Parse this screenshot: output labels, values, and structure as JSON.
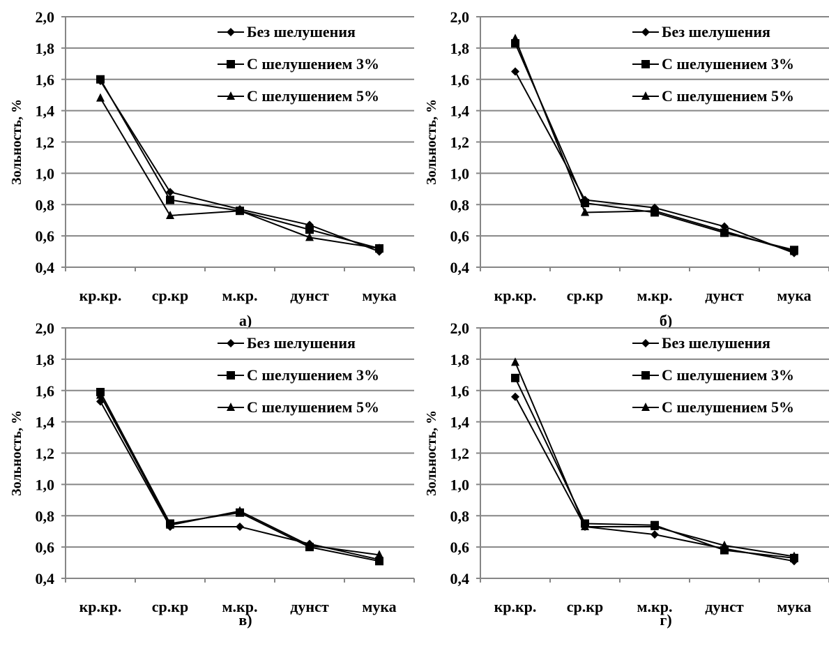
{
  "figure": {
    "charts": [
      {
        "panel_label": "а)"
      },
      {
        "panel_label": "б)"
      },
      {
        "panel_label": "в)"
      },
      {
        "panel_label": "г)"
      }
    ]
  },
  "chart_data": [
    {
      "type": "line",
      "panel": "а)",
      "categories": [
        "кр.кр.",
        "ср.кр",
        "м.кр.",
        "дунст",
        "мука"
      ],
      "ylabel": "Зольность, %",
      "ylim": [
        0.4,
        2.0
      ],
      "yticks": [
        "0,4",
        "0,6",
        "0,8",
        "1,0",
        "1,2",
        "1,4",
        "1,6",
        "1,8",
        "2,0"
      ],
      "grid": true,
      "legend_position": "top-right",
      "series": [
        {
          "name": "Без шелушения",
          "marker": "diamond",
          "values": [
            1.59,
            0.88,
            0.77,
            0.67,
            0.5
          ]
        },
        {
          "name": "С шелушением 3%",
          "marker": "square",
          "values": [
            1.6,
            0.83,
            0.76,
            0.64,
            0.52
          ]
        },
        {
          "name": "С шелушением 5%",
          "marker": "triangle",
          "values": [
            1.48,
            0.73,
            0.76,
            0.59,
            0.52
          ]
        }
      ]
    },
    {
      "type": "line",
      "panel": "б)",
      "categories": [
        "кр.кр.",
        "ср.кр",
        "м.кр.",
        "дунст",
        "мука"
      ],
      "ylabel": "Зольность, %",
      "ylim": [
        0.4,
        2.0
      ],
      "yticks": [
        "0,4",
        "0,6",
        "0,8",
        "1,0",
        "1,2",
        "1,4",
        "1,6",
        "1,8",
        "2,0"
      ],
      "grid": true,
      "legend_position": "top-right",
      "series": [
        {
          "name": "Без шелушения",
          "marker": "diamond",
          "values": [
            1.65,
            0.83,
            0.78,
            0.66,
            0.49
          ]
        },
        {
          "name": "С шелушением 3%",
          "marker": "square",
          "values": [
            1.83,
            0.81,
            0.75,
            0.62,
            0.51
          ]
        },
        {
          "name": "С шелушением 5%",
          "marker": "triangle",
          "values": [
            1.86,
            0.75,
            0.76,
            0.63,
            0.5
          ]
        }
      ]
    },
    {
      "type": "line",
      "panel": "в)",
      "categories": [
        "кр.кр.",
        "ср.кр",
        "м.кр.",
        "дунст",
        "мука"
      ],
      "ylabel": "Зольность, %",
      "ylim": [
        0.4,
        2.0
      ],
      "yticks": [
        "0,4",
        "0,6",
        "0,8",
        "1,0",
        "1,2",
        "1,4",
        "1,6",
        "1,8",
        "2,0"
      ],
      "grid": true,
      "legend_position": "top-right",
      "series": [
        {
          "name": "Без шелушения",
          "marker": "diamond",
          "values": [
            1.53,
            0.73,
            0.73,
            0.62,
            0.52
          ]
        },
        {
          "name": "С шелушением 3%",
          "marker": "square",
          "values": [
            1.59,
            0.75,
            0.82,
            0.6,
            0.51
          ]
        },
        {
          "name": "С шелушением 5%",
          "marker": "triangle",
          "values": [
            1.57,
            0.74,
            0.83,
            0.61,
            0.55
          ]
        }
      ]
    },
    {
      "type": "line",
      "panel": "г)",
      "categories": [
        "кр.кр.",
        "ср.кр",
        "м.кр.",
        "дунст",
        "мука"
      ],
      "ylabel": "Зольность, %",
      "ylim": [
        0.4,
        2.0
      ],
      "yticks": [
        "0,4",
        "0,6",
        "0,8",
        "1,0",
        "1,2",
        "1,4",
        "1,6",
        "1,8",
        "2,0"
      ],
      "grid": true,
      "legend_position": "top-right",
      "series": [
        {
          "name": "Без шелушения",
          "marker": "diamond",
          "values": [
            1.56,
            0.73,
            0.68,
            0.59,
            0.51
          ]
        },
        {
          "name": "С шелушением 3%",
          "marker": "square",
          "values": [
            1.68,
            0.75,
            0.74,
            0.58,
            0.53
          ]
        },
        {
          "name": "С шелушением 5%",
          "marker": "triangle",
          "values": [
            1.78,
            0.73,
            0.73,
            0.61,
            0.54
          ]
        }
      ]
    }
  ]
}
